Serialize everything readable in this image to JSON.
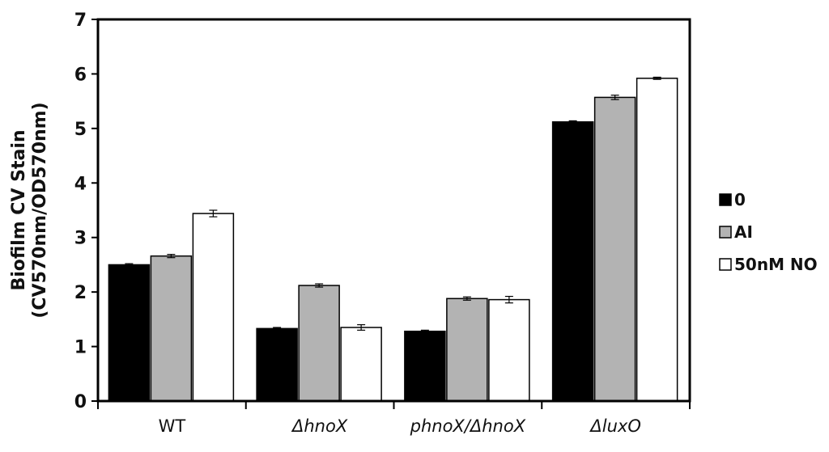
{
  "chart_data": {
    "type": "bar",
    "title": "",
    "ylabel_lines": [
      "Biofilm CV Stain",
      "(CV570nm/OD570nm)"
    ],
    "xlabel": "",
    "ylim": [
      0,
      7
    ],
    "yticks": [
      "0",
      "1",
      "2",
      "3",
      "4",
      "5",
      "6",
      "7"
    ],
    "categories": [
      "WT",
      "ΔhnoX",
      "phnoX/ΔhnoX",
      "ΔluxO"
    ],
    "category_italic": [
      false,
      true,
      true,
      true
    ],
    "series": [
      {
        "name": "0",
        "color": "#000000",
        "values": [
          2.5,
          1.33,
          1.28,
          5.12
        ],
        "errors": [
          0.02,
          0.02,
          0.02,
          0.02
        ]
      },
      {
        "name": "AI",
        "color": "#b3b3b3",
        "values": [
          2.66,
          2.12,
          1.88,
          5.57
        ],
        "errors": [
          0.03,
          0.03,
          0.03,
          0.04
        ]
      },
      {
        "name": "50nM NO",
        "color": "#ffffff",
        "values": [
          3.44,
          1.35,
          1.86,
          5.92
        ],
        "errors": [
          0.06,
          0.05,
          0.06,
          0.02
        ]
      }
    ],
    "grid": false,
    "legend_position": "right"
  }
}
